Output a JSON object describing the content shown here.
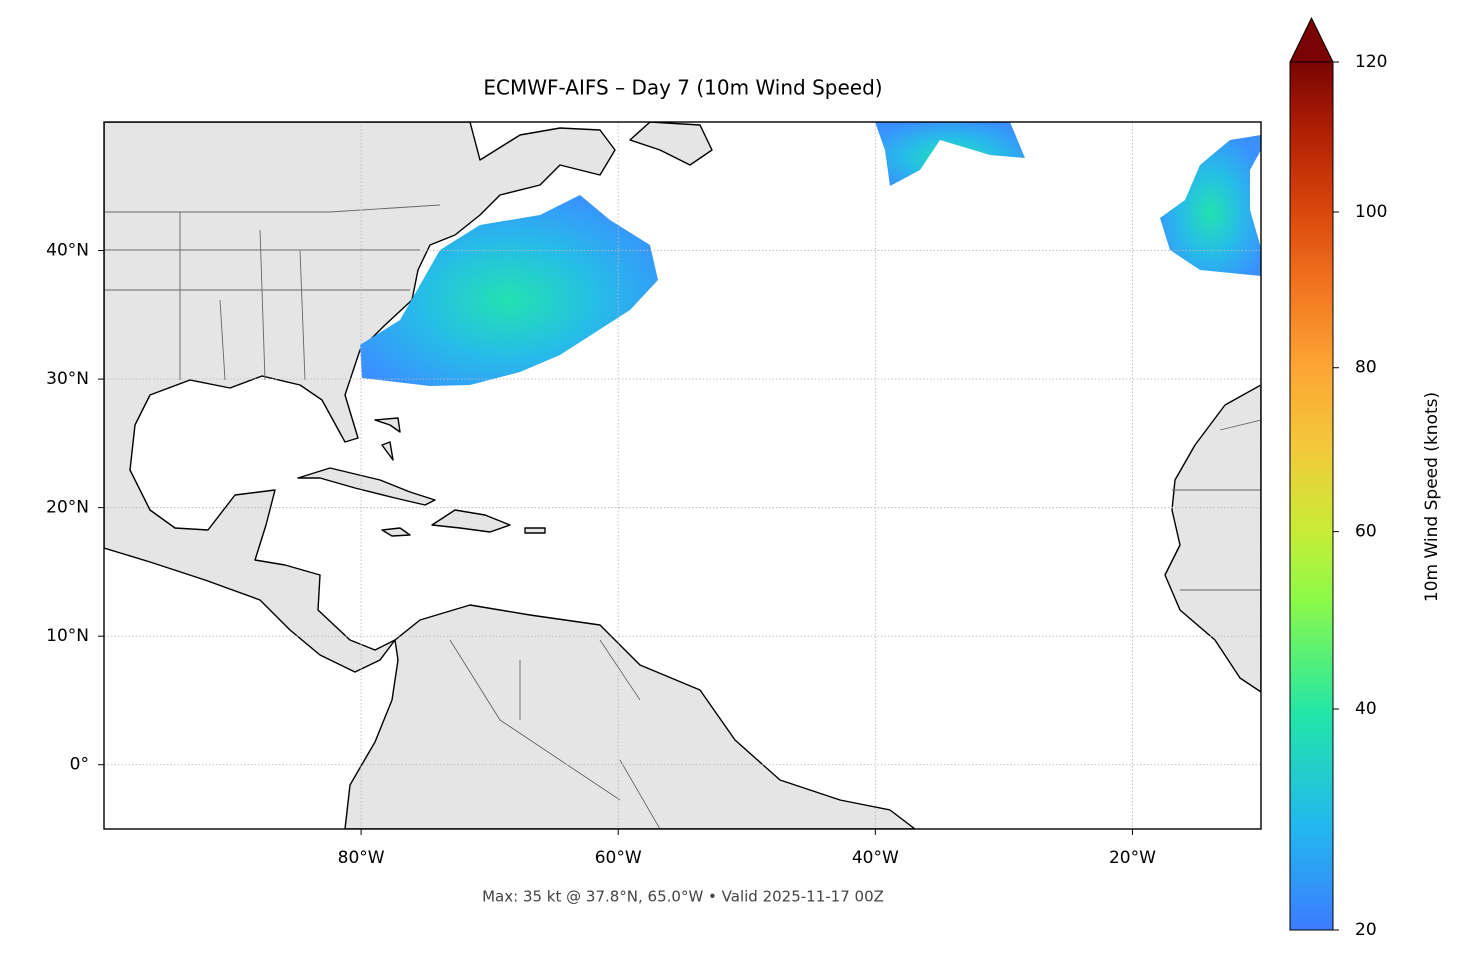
{
  "chart_data": {
    "type": "map",
    "title": "ECMWF-AIFS – Day 7 (10m Wind Speed)",
    "subtitle": "Max: 35 kt @ 37.8°N, 65.0°W • Valid 2025-11-17 00Z",
    "xlim": [
      -100,
      -10
    ],
    "ylim": [
      -5,
      50
    ],
    "xticks": [
      {
        "value": -80,
        "label": "80°W"
      },
      {
        "value": -60,
        "label": "60°W"
      },
      {
        "value": -40,
        "label": "40°W"
      },
      {
        "value": -20,
        "label": "20°W"
      }
    ],
    "yticks": [
      {
        "value": 0,
        "label": "0°"
      },
      {
        "value": 10,
        "label": "10°N"
      },
      {
        "value": 20,
        "label": "20°N"
      },
      {
        "value": 30,
        "label": "30°N"
      },
      {
        "value": 40,
        "label": "40°N"
      }
    ],
    "grid": true,
    "colorbar": {
      "label": "10m Wind Speed (knots)",
      "lim": [
        20,
        120
      ],
      "ticks": [
        20,
        40,
        60,
        80,
        100,
        120
      ],
      "gamma": 0.85,
      "extend": "max"
    }
  }
}
